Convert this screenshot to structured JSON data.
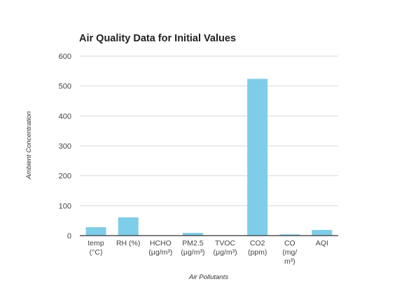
{
  "chart_data": {
    "type": "bar",
    "title": "Air Quality Data for Initial Values",
    "xlabel": "Air Pollutants",
    "ylabel": "Ambient Concentration",
    "categories": [
      [
        "temp",
        "(°C)"
      ],
      [
        "RH (%)"
      ],
      [
        "HCHO",
        "(μg/m³)"
      ],
      [
        "PM2.5",
        "(μg/m³)"
      ],
      [
        "TVOC",
        "(μg/m³)"
      ],
      [
        "CO2",
        "(ppm)"
      ],
      [
        "CO",
        "(mg/",
        "m³)"
      ],
      [
        "AQI"
      ]
    ],
    "values": [
      28,
      61,
      1,
      9,
      1,
      524,
      4,
      19
    ],
    "ylim": [
      0,
      600
    ],
    "yticks": [
      0,
      100,
      200,
      300,
      400,
      500,
      600
    ],
    "grid": true,
    "legend": "none",
    "colors": {
      "bar": "#7ecde9",
      "grid": "#d9d9d9",
      "axis": "#333333"
    }
  }
}
